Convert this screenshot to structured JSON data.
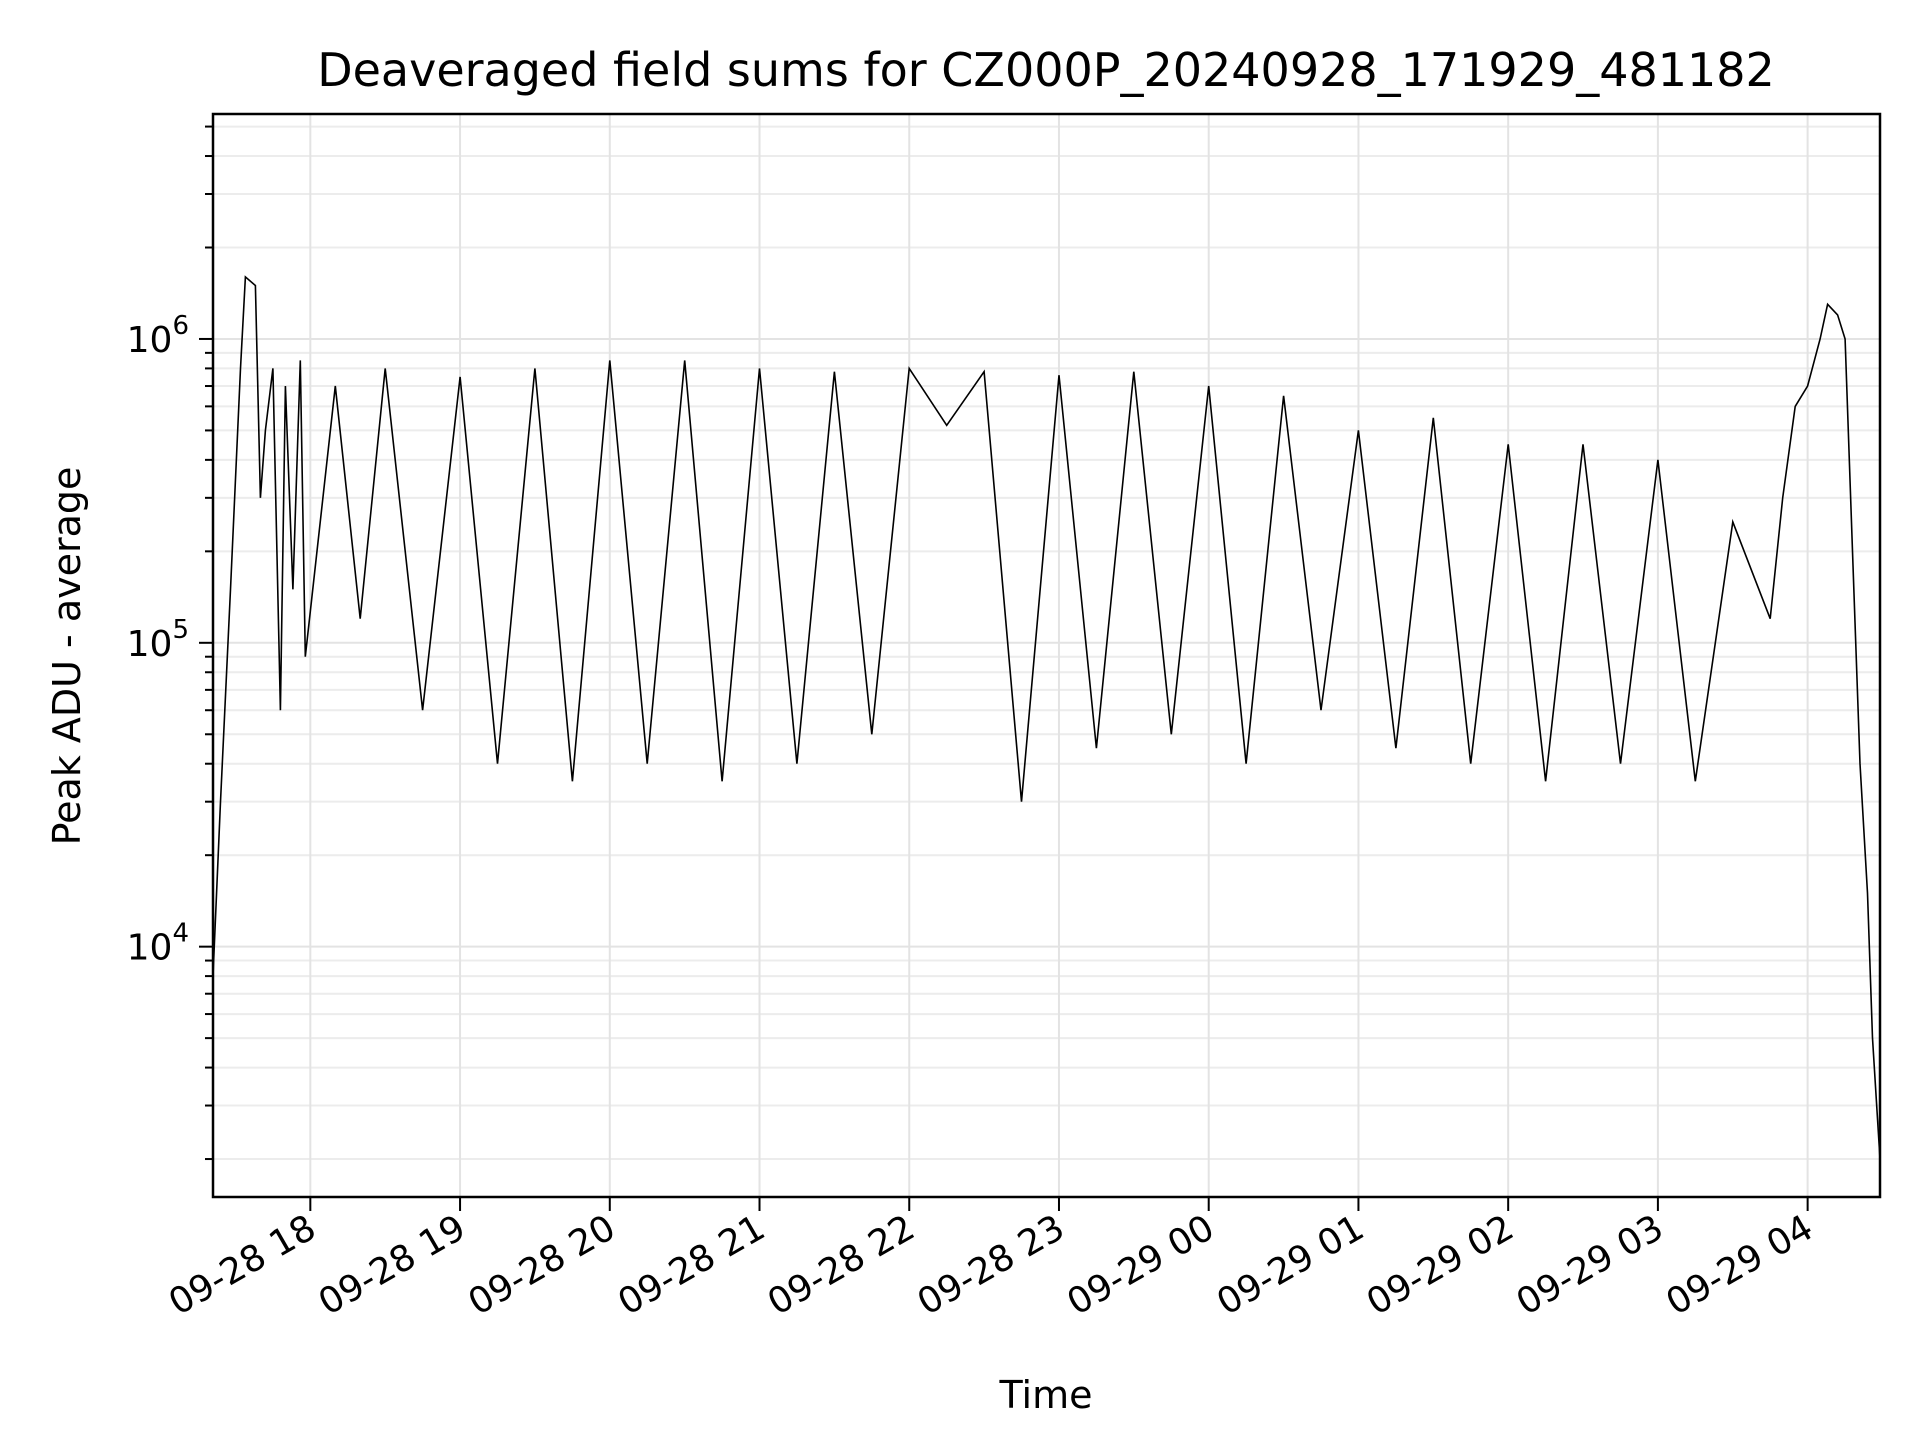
{
  "chart_data": {
    "type": "line",
    "title": "Deaveraged field sums for CZ000P_20240928_171929_481182",
    "xlabel": "Time",
    "ylabel": "Peak ADU - average",
    "y_scale": "log",
    "ylim": [
      1500,
      5500000
    ],
    "xlim": [
      "2024-09-28 17:21",
      "2024-09-29 04:29"
    ],
    "x_ticks": [
      "2024-09-28 18:00",
      "2024-09-28 19:00",
      "2024-09-28 20:00",
      "2024-09-28 21:00",
      "2024-09-28 22:00",
      "2024-09-28 23:00",
      "2024-09-29 00:00",
      "2024-09-29 01:00",
      "2024-09-29 02:00",
      "2024-09-29 03:00",
      "2024-09-29 04:00"
    ],
    "x_tick_labels": [
      "09-28 18",
      "09-28 19",
      "09-28 20",
      "09-28 21",
      "09-28 22",
      "09-28 23",
      "09-29 00",
      "09-29 01",
      "09-29 02",
      "09-29 03",
      "09-29 04"
    ],
    "y_ticks": [
      {
        "base": "10",
        "exp": "4",
        "value": 10000
      },
      {
        "base": "10",
        "exp": "5",
        "value": 100000
      },
      {
        "base": "10",
        "exp": "6",
        "value": 1000000
      }
    ],
    "grid": true,
    "line_color": "#000000",
    "series": [
      {
        "x": [
          "2024-09-28 17:21",
          "2024-09-28 17:24",
          "2024-09-28 17:28",
          "2024-09-28 17:32",
          "2024-09-28 17:34",
          "2024-09-28 17:38",
          "2024-09-28 17:40",
          "2024-09-28 17:42",
          "2024-09-28 17:45",
          "2024-09-28 17:48",
          "2024-09-28 17:50",
          "2024-09-28 17:53",
          "2024-09-28 17:56",
          "2024-09-28 17:58",
          "2024-09-28 18:10",
          "2024-09-28 18:20",
          "2024-09-28 18:30",
          "2024-09-28 18:45",
          "2024-09-28 19:00",
          "2024-09-28 19:15",
          "2024-09-28 19:30",
          "2024-09-28 19:45",
          "2024-09-28 20:00",
          "2024-09-28 20:15",
          "2024-09-28 20:30",
          "2024-09-28 20:45",
          "2024-09-28 21:00",
          "2024-09-28 21:15",
          "2024-09-28 21:30",
          "2024-09-28 21:45",
          "2024-09-28 22:00",
          "2024-09-28 22:15",
          "2024-09-28 22:30",
          "2024-09-28 22:45",
          "2024-09-28 23:00",
          "2024-09-28 23:15",
          "2024-09-28 23:30",
          "2024-09-28 23:45",
          "2024-09-29 00:00",
          "2024-09-29 00:15",
          "2024-09-29 00:30",
          "2024-09-29 00:45",
          "2024-09-29 01:00",
          "2024-09-29 01:15",
          "2024-09-29 01:30",
          "2024-09-29 01:45",
          "2024-09-29 02:00",
          "2024-09-29 02:15",
          "2024-09-29 02:30",
          "2024-09-29 02:45",
          "2024-09-29 03:00",
          "2024-09-29 03:15",
          "2024-09-29 03:30",
          "2024-09-29 03:45",
          "2024-09-29 03:50",
          "2024-09-29 03:55",
          "2024-09-29 04:00",
          "2024-09-29 04:05",
          "2024-09-29 04:08",
          "2024-09-29 04:12",
          "2024-09-29 04:15",
          "2024-09-29 04:18",
          "2024-09-29 04:21",
          "2024-09-29 04:24",
          "2024-09-29 04:26",
          "2024-09-29 04:29"
        ],
        "y": [
          8000,
          30000,
          150000,
          800000,
          1600000,
          1500000,
          300000,
          500000,
          800000,
          60000,
          700000,
          150000,
          850000,
          90000,
          700000,
          120000,
          800000,
          60000,
          750000,
          40000,
          800000,
          35000,
          850000,
          40000,
          850000,
          35000,
          800000,
          40000,
          780000,
          50000,
          800000,
          520000,
          780000,
          30000,
          760000,
          45000,
          780000,
          50000,
          700000,
          40000,
          650000,
          60000,
          500000,
          45000,
          550000,
          40000,
          450000,
          35000,
          450000,
          40000,
          400000,
          35000,
          250000,
          120000,
          300000,
          600000,
          700000,
          1000000,
          1300000,
          1200000,
          1000000,
          200000,
          40000,
          15000,
          5000,
          2000
        ]
      }
    ]
  }
}
